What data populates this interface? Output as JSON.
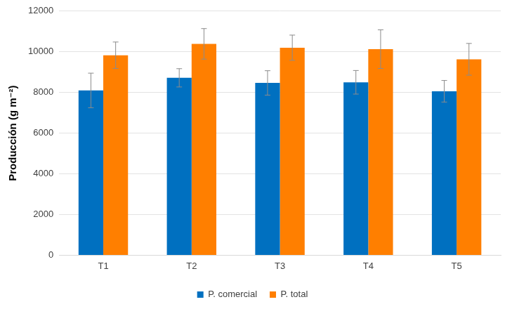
{
  "chart_data": {
    "type": "bar",
    "y_label": "Producción (g m⁻²)",
    "categories": [
      "T1",
      "T2",
      "T3",
      "T4",
      "T5"
    ],
    "series": [
      {
        "name": "P. comercial",
        "color": "#0070c0",
        "values": [
          8100,
          8720,
          8470,
          8500,
          8060
        ],
        "errors": [
          850,
          450,
          600,
          580,
          530
        ]
      },
      {
        "name": "P. total",
        "color": "#ff7f00",
        "values": [
          9830,
          10390,
          10200,
          10130,
          9630
        ],
        "errors": [
          650,
          750,
          620,
          950,
          780
        ]
      }
    ],
    "ylim": [
      0,
      12000
    ],
    "yticks": [
      0,
      2000,
      4000,
      6000,
      8000,
      10000,
      12000
    ],
    "grid": true,
    "legend": "bottom"
  }
}
